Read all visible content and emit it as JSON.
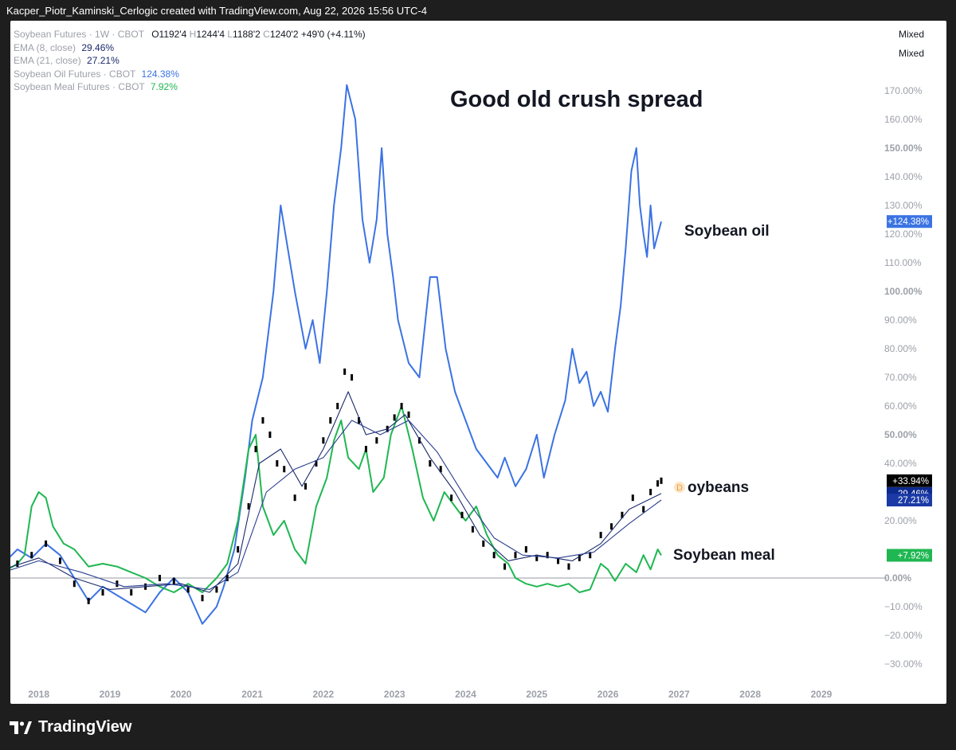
{
  "header": {
    "attribution": "Kacper_Piotr_Kaminski_Cerlogic created with TradingView.com, Aug 22, 2026 15:56 UTC-4"
  },
  "footer": {
    "brand": "TradingView",
    "logo_icon": "tradingview-logo-icon"
  },
  "scale_modes": [
    "Mixed",
    "Mixed"
  ],
  "legend": {
    "main": {
      "name": "Soybean Futures · 1W · CBOT",
      "o_label": "O",
      "o": "1192'4",
      "h_label": "H",
      "h": "1244'4",
      "l_label": "L",
      "l": "1188'2",
      "c_label": "C",
      "c": "1240'2",
      "change": "+49'0 (+4.11%)"
    },
    "ema8": {
      "name": "EMA (8, close)",
      "value": "29.46%"
    },
    "ema21": {
      "name": "EMA (21, close)",
      "value": "27.21%"
    },
    "oil": {
      "name": "Soybean Oil Futures · CBOT",
      "value": "124.38%"
    },
    "meal": {
      "name": "Soybean Meal Futures · CBOT",
      "value": "7.92%"
    }
  },
  "colors": {
    "oil": "#3b73e3",
    "meal": "#1fb751",
    "candle": "#131722",
    "ema8": "#1b2a6b",
    "ema21": "#2a3f8f",
    "badge_main": "#000000",
    "badge_ema8": "#0d2a8f",
    "badge_ema21": "#1b3aa6",
    "badge_oil": "#3b73e3",
    "badge_meal": "#1fb751"
  },
  "chart_data": {
    "type": "line",
    "title": "Good old crush spread",
    "y_unit": "%",
    "ylim": [
      -35,
      170
    ],
    "y_ticks": [
      {
        "label": "170.00%",
        "v": 170,
        "bold": false
      },
      {
        "label": "160.00%",
        "v": 160,
        "bold": false
      },
      {
        "label": "150.00%",
        "v": 150,
        "bold": true
      },
      {
        "label": "140.00%",
        "v": 140,
        "bold": false
      },
      {
        "label": "130.00%",
        "v": 130,
        "bold": false
      },
      {
        "label": "120.00%",
        "v": 120,
        "bold": false
      },
      {
        "label": "110.00%",
        "v": 110,
        "bold": false
      },
      {
        "label": "100.00%",
        "v": 100,
        "bold": true
      },
      {
        "label": "90.00%",
        "v": 90,
        "bold": false
      },
      {
        "label": "80.00%",
        "v": 80,
        "bold": false
      },
      {
        "label": "70.00%",
        "v": 70,
        "bold": false
      },
      {
        "label": "60.00%",
        "v": 60,
        "bold": false
      },
      {
        "label": "50.00%",
        "v": 50,
        "bold": true
      },
      {
        "label": "40.00%",
        "v": 40,
        "bold": false
      },
      {
        "label": "20.00%",
        "v": 20,
        "bold": false
      },
      {
        "label": "0.00%",
        "v": 0,
        "bold": true
      },
      {
        "label": "−10.00%",
        "v": -10,
        "bold": false
      },
      {
        "label": "−20.00%",
        "v": -20,
        "bold": false
      },
      {
        "label": "−30.00%",
        "v": -30,
        "bold": false
      }
    ],
    "x_ticks": [
      "2018",
      "2019",
      "2020",
      "2021",
      "2022",
      "2023",
      "2024",
      "2025",
      "2026",
      "2027",
      "2028",
      "2029"
    ],
    "xlim": [
      2017.5,
      2030.1
    ],
    "series": [
      {
        "name": "Soybean Oil Futures · CBOT",
        "key": "oil",
        "points": [
          [
            2017.5,
            5
          ],
          [
            2017.7,
            10
          ],
          [
            2017.9,
            7
          ],
          [
            2018.1,
            12
          ],
          [
            2018.3,
            8
          ],
          [
            2018.5,
            0
          ],
          [
            2018.7,
            -8
          ],
          [
            2018.9,
            -3
          ],
          [
            2019.1,
            -6
          ],
          [
            2019.3,
            -9
          ],
          [
            2019.5,
            -12
          ],
          [
            2019.7,
            -5
          ],
          [
            2019.9,
            0
          ],
          [
            2020.1,
            -5
          ],
          [
            2020.3,
            -16
          ],
          [
            2020.5,
            -10
          ],
          [
            2020.6,
            -3
          ],
          [
            2020.75,
            10
          ],
          [
            2020.9,
            35
          ],
          [
            2021.0,
            55
          ],
          [
            2021.15,
            70
          ],
          [
            2021.3,
            100
          ],
          [
            2021.4,
            130
          ],
          [
            2021.5,
            115
          ],
          [
            2021.6,
            100
          ],
          [
            2021.75,
            80
          ],
          [
            2021.85,
            90
          ],
          [
            2021.95,
            75
          ],
          [
            2022.05,
            100
          ],
          [
            2022.15,
            130
          ],
          [
            2022.25,
            150
          ],
          [
            2022.33,
            172
          ],
          [
            2022.45,
            160
          ],
          [
            2022.55,
            125
          ],
          [
            2022.65,
            110
          ],
          [
            2022.75,
            125
          ],
          [
            2022.82,
            150
          ],
          [
            2022.9,
            120
          ],
          [
            2022.98,
            105
          ],
          [
            2023.05,
            90
          ],
          [
            2023.2,
            75
          ],
          [
            2023.35,
            70
          ],
          [
            2023.5,
            105
          ],
          [
            2023.6,
            105
          ],
          [
            2023.72,
            80
          ],
          [
            2023.85,
            65
          ],
          [
            2024.0,
            55
          ],
          [
            2024.15,
            45
          ],
          [
            2024.3,
            40
          ],
          [
            2024.45,
            35
          ],
          [
            2024.55,
            42
          ],
          [
            2024.7,
            32
          ],
          [
            2024.85,
            38
          ],
          [
            2025.0,
            50
          ],
          [
            2025.1,
            35
          ],
          [
            2025.25,
            50
          ],
          [
            2025.4,
            62
          ],
          [
            2025.5,
            80
          ],
          [
            2025.6,
            68
          ],
          [
            2025.7,
            72
          ],
          [
            2025.8,
            60
          ],
          [
            2025.9,
            65
          ],
          [
            2026.0,
            58
          ],
          [
            2026.1,
            80
          ],
          [
            2026.18,
            95
          ],
          [
            2026.25,
            115
          ],
          [
            2026.33,
            142
          ],
          [
            2026.4,
            150
          ],
          [
            2026.45,
            130
          ],
          [
            2026.5,
            120
          ],
          [
            2026.55,
            112
          ],
          [
            2026.6,
            130
          ],
          [
            2026.65,
            115
          ],
          [
            2026.75,
            124.38
          ]
        ]
      },
      {
        "name": "Soybean Meal Futures · CBOT",
        "key": "meal",
        "points": [
          [
            2017.5,
            2
          ],
          [
            2017.7,
            5
          ],
          [
            2017.8,
            8
          ],
          [
            2017.9,
            25
          ],
          [
            2018.0,
            30
          ],
          [
            2018.1,
            28
          ],
          [
            2018.2,
            18
          ],
          [
            2018.35,
            12
          ],
          [
            2018.5,
            10
          ],
          [
            2018.7,
            4
          ],
          [
            2018.9,
            5
          ],
          [
            2019.1,
            4
          ],
          [
            2019.3,
            2
          ],
          [
            2019.5,
            0
          ],
          [
            2019.7,
            -3
          ],
          [
            2019.9,
            -5
          ],
          [
            2020.1,
            -2
          ],
          [
            2020.3,
            -5
          ],
          [
            2020.5,
            0
          ],
          [
            2020.65,
            5
          ],
          [
            2020.8,
            20
          ],
          [
            2020.95,
            45
          ],
          [
            2021.05,
            50
          ],
          [
            2021.15,
            25
          ],
          [
            2021.3,
            15
          ],
          [
            2021.45,
            20
          ],
          [
            2021.6,
            10
          ],
          [
            2021.75,
            5
          ],
          [
            2021.9,
            25
          ],
          [
            2022.05,
            35
          ],
          [
            2022.15,
            48
          ],
          [
            2022.25,
            55
          ],
          [
            2022.35,
            42
          ],
          [
            2022.5,
            38
          ],
          [
            2022.6,
            45
          ],
          [
            2022.7,
            30
          ],
          [
            2022.85,
            35
          ],
          [
            2022.95,
            50
          ],
          [
            2023.1,
            60
          ],
          [
            2023.25,
            45
          ],
          [
            2023.4,
            28
          ],
          [
            2023.55,
            20
          ],
          [
            2023.7,
            30
          ],
          [
            2023.85,
            25
          ],
          [
            2024.0,
            20
          ],
          [
            2024.15,
            25
          ],
          [
            2024.3,
            15
          ],
          [
            2024.45,
            8
          ],
          [
            2024.6,
            5
          ],
          [
            2024.7,
            0
          ],
          [
            2024.85,
            -2
          ],
          [
            2025.0,
            -3
          ],
          [
            2025.15,
            -2
          ],
          [
            2025.3,
            -3
          ],
          [
            2025.45,
            -2
          ],
          [
            2025.6,
            -5
          ],
          [
            2025.75,
            -4
          ],
          [
            2025.9,
            5
          ],
          [
            2026.0,
            3
          ],
          [
            2026.1,
            -1
          ],
          [
            2026.25,
            5
          ],
          [
            2026.4,
            2
          ],
          [
            2026.5,
            8
          ],
          [
            2026.6,
            3
          ],
          [
            2026.7,
            10
          ],
          [
            2026.75,
            7.92
          ]
        ]
      },
      {
        "name": "Soybean Futures · 1W · CBOT",
        "key": "main",
        "points": [
          [
            2017.5,
            3
          ],
          [
            2017.7,
            5
          ],
          [
            2017.9,
            8
          ],
          [
            2018.1,
            12
          ],
          [
            2018.3,
            6
          ],
          [
            2018.5,
            -2
          ],
          [
            2018.7,
            -8
          ],
          [
            2018.9,
            -5
          ],
          [
            2019.1,
            -2
          ],
          [
            2019.3,
            -5
          ],
          [
            2019.5,
            -3
          ],
          [
            2019.7,
            0
          ],
          [
            2019.9,
            -1
          ],
          [
            2020.1,
            -4
          ],
          [
            2020.3,
            -7
          ],
          [
            2020.5,
            -4
          ],
          [
            2020.65,
            0
          ],
          [
            2020.8,
            10
          ],
          [
            2020.95,
            25
          ],
          [
            2021.05,
            45
          ],
          [
            2021.15,
            55
          ],
          [
            2021.25,
            50
          ],
          [
            2021.35,
            40
          ],
          [
            2021.45,
            38
          ],
          [
            2021.6,
            28
          ],
          [
            2021.75,
            32
          ],
          [
            2021.9,
            40
          ],
          [
            2022.0,
            48
          ],
          [
            2022.1,
            55
          ],
          [
            2022.2,
            60
          ],
          [
            2022.3,
            72
          ],
          [
            2022.4,
            70
          ],
          [
            2022.5,
            55
          ],
          [
            2022.6,
            45
          ],
          [
            2022.75,
            48
          ],
          [
            2022.9,
            52
          ],
          [
            2023.0,
            56
          ],
          [
            2023.1,
            60
          ],
          [
            2023.2,
            57
          ],
          [
            2023.35,
            48
          ],
          [
            2023.5,
            40
          ],
          [
            2023.65,
            38
          ],
          [
            2023.8,
            28
          ],
          [
            2023.95,
            22
          ],
          [
            2024.1,
            17
          ],
          [
            2024.25,
            12
          ],
          [
            2024.4,
            8
          ],
          [
            2024.55,
            4
          ],
          [
            2024.7,
            8
          ],
          [
            2024.85,
            10
          ],
          [
            2025.0,
            7
          ],
          [
            2025.15,
            8
          ],
          [
            2025.3,
            6
          ],
          [
            2025.45,
            4
          ],
          [
            2025.6,
            7
          ],
          [
            2025.75,
            8
          ],
          [
            2025.9,
            15
          ],
          [
            2026.05,
            18
          ],
          [
            2026.2,
            22
          ],
          [
            2026.35,
            28
          ],
          [
            2026.5,
            24
          ],
          [
            2026.6,
            30
          ],
          [
            2026.7,
            33
          ],
          [
            2026.75,
            33.94
          ]
        ]
      },
      {
        "name": "EMA (8, close)",
        "key": "ema8",
        "points": [
          [
            2017.5,
            3
          ],
          [
            2018.0,
            7
          ],
          [
            2018.5,
            0
          ],
          [
            2019.0,
            -4
          ],
          [
            2019.5,
            -3
          ],
          [
            2020.0,
            -2
          ],
          [
            2020.4,
            -5
          ],
          [
            2020.8,
            5
          ],
          [
            2021.1,
            40
          ],
          [
            2021.4,
            45
          ],
          [
            2021.7,
            32
          ],
          [
            2022.0,
            45
          ],
          [
            2022.35,
            65
          ],
          [
            2022.6,
            50
          ],
          [
            2022.9,
            52
          ],
          [
            2023.15,
            57
          ],
          [
            2023.5,
            42
          ],
          [
            2023.85,
            30
          ],
          [
            2024.2,
            15
          ],
          [
            2024.6,
            6
          ],
          [
            2025.0,
            8
          ],
          [
            2025.5,
            6
          ],
          [
            2025.9,
            12
          ],
          [
            2026.3,
            24
          ],
          [
            2026.75,
            29.46
          ]
        ]
      },
      {
        "name": "EMA (21, close)",
        "key": "ema21",
        "points": [
          [
            2017.5,
            2
          ],
          [
            2018.0,
            6
          ],
          [
            2018.6,
            2
          ],
          [
            2019.2,
            -3
          ],
          [
            2019.8,
            -2
          ],
          [
            2020.4,
            -4
          ],
          [
            2020.8,
            2
          ],
          [
            2021.2,
            30
          ],
          [
            2021.6,
            38
          ],
          [
            2022.0,
            42
          ],
          [
            2022.4,
            55
          ],
          [
            2022.8,
            50
          ],
          [
            2023.2,
            55
          ],
          [
            2023.6,
            44
          ],
          [
            2024.0,
            28
          ],
          [
            2024.4,
            14
          ],
          [
            2024.8,
            8
          ],
          [
            2025.3,
            7
          ],
          [
            2025.8,
            9
          ],
          [
            2026.3,
            19
          ],
          [
            2026.75,
            27.21
          ]
        ]
      }
    ],
    "annotations": [
      {
        "text": "Soybean oil",
        "key": "oil"
      },
      {
        "text": "oybeans",
        "key": "main",
        "marker": "D"
      },
      {
        "text": "Soybean meal",
        "key": "meal"
      }
    ],
    "price_badges": [
      {
        "label": "+124.38%",
        "v": 124.38,
        "key": "badge_oil"
      },
      {
        "label": "+33.94%",
        "v": 33.94,
        "key": "badge_main"
      },
      {
        "label": "29.46%",
        "v": 29.46,
        "key": "badge_ema8"
      },
      {
        "label": "27.21%",
        "v": 27.21,
        "key": "badge_ema21"
      },
      {
        "label": "+7.92%",
        "v": 7.92,
        "key": "badge_meal"
      }
    ]
  }
}
